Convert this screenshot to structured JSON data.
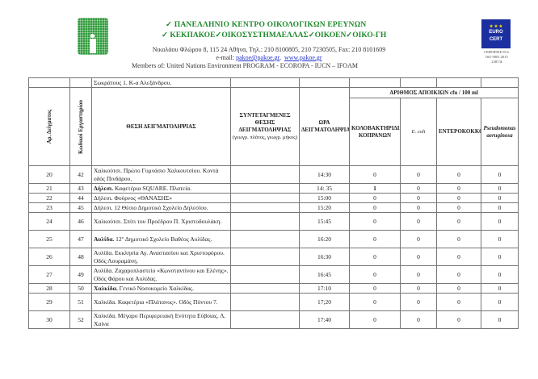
{
  "header": {
    "line1": "✓  ΠΑΝΕΛΛΗΝΙΟ ΚΕΝΤΡΟ ΟΙΚΟΛΟΓΙΚΩΝ ΕΡΕΥΝΩΝ",
    "line2": "✓ ΚΕΚΠΑΚΟΕ✓ΟΙΚΟΣΥΣΤΗΜΑΕΛΛΑΣ✓ΟΙΚΟΕΝ✓ΟΙΚΟ-ΓΗ",
    "address": "Νικολάου Φλώρου 8, 115 24 Αθήνα, Τηλ.: 210 8100805, 210 7230505, Fax: 210 8101609",
    "email_label": "e-mail:",
    "email": "pakoe@pakoe.gr",
    "website": "www.pakoe.gr",
    "members": "Members of:  United Nations Environment PROGRAM - ECOROPA - IUCN – IFOAM",
    "cert_logo": [
      "EURO",
      "CERT"
    ],
    "cert_text": [
      "CERTIFIED N.S.",
      "ISO 9001:2015",
      "2387/Δ"
    ],
    "brand_color": "#1f8a2c"
  },
  "table": {
    "prev_row_text": "Σωκράτους 1. Κ-α Αλεξάνδρου.",
    "headers": {
      "sample_no": "Αρ. Δείγματος",
      "lab_code": "Κωδικοί Εργαστηρίου",
      "location": "ΘΕΣΗ ΔΕΙΓΜΑΤΟΛΗΨΙΑΣ",
      "coords": "ΣΥΝΤΕΤΑΓΜΕΝΕΣ ΘΕΣΗΣ ΔΕΙΓΜΑΤΟΛΗΨΙΑΣ",
      "coords_note": "(γεωγρ. πλάτος, γεωγρ. μήκος)",
      "time": "ΩΡΑ ΔΕΙΓΜΑΤΟΛΗΨΙΑΣ",
      "colonies": "ΑΡΙΘΜΟΣ ΑΠΟΙΚΙΩΝ  cfu / 100 ml",
      "coliforms": "ΚΟΛΟΒΑΚΤΗΡΙΔΙΑ ΚΟΠΡΑΝΩΝ",
      "ecoli": "E. coli",
      "enterococci": "ΕΝΤΕΡΟΚΟΚΚΟΙ",
      "pseudomonas": "Pseudomonas aeruginosa"
    },
    "rows": [
      {
        "no": "20",
        "code": "42",
        "bold": "",
        "loc": "Χαλκούτσι.  Πρώτο Γυμνάσιο Χαλκουτσίου. Κοντά οδός Πινδάρου.",
        "time": "14:30",
        "v": [
          "0",
          "0",
          "0",
          "0"
        ],
        "h": "d"
      },
      {
        "no": "21",
        "code": "43",
        "bold": "Δήλεσι.",
        "loc": " Καφετέρια SQUARE. Πλατεία.",
        "time": "14: 35",
        "v": [
          "1",
          "0",
          "0",
          "0"
        ],
        "h": "s"
      },
      {
        "no": "22",
        "code": "44",
        "bold": "",
        "loc": "Δήλεσι.  Φούρνος «ΘΑΝΑΣΗΣ»",
        "time": "15:00",
        "v": [
          "0",
          "0",
          "0",
          "0"
        ],
        "h": "s"
      },
      {
        "no": "23",
        "code": "45",
        "bold": "",
        "loc": "Δήλεσι. 12 Θέσιο Δημοτικό Σχολείο Δηλεσίου.",
        "time": "15:20",
        "v": [
          "0",
          "0",
          "0",
          "0"
        ],
        "h": "s"
      },
      {
        "no": "24",
        "code": "46",
        "bold": "",
        "loc": "Χαλκούτσι. Σπίτι του Προέδρου Π. Χριστοδουλάκη.",
        "time": "15:45",
        "v": [
          "0",
          "0",
          "0",
          "0"
        ],
        "h": "d"
      },
      {
        "no": "25",
        "code": "47",
        "bold": "Αυλίδα.",
        "loc": " 12º Δημοτικό Σχολείο Βαθέος Αυλίδας.",
        "time": "16:20",
        "v": [
          "0",
          "0",
          "0",
          "0"
        ],
        "h": "d"
      },
      {
        "no": "26",
        "code": "48",
        "bold": "",
        "loc": "Αυλίδα. Εκκλησία Αγ. Αναστασίου και Χριστοφόρου. Οδός Λουραμάνη.",
        "time": "16:30",
        "v": [
          "0",
          "0",
          "0",
          "0"
        ],
        "h": "d"
      },
      {
        "no": "27",
        "code": "49",
        "bold": "",
        "loc": "Αυλίδα. Ζαχαροπλαστείο «Κωνσταντίνου και Ελένης». Οδός Φάρου και Αυλίδας.",
        "time": "16:45",
        "v": [
          "0",
          "0",
          "0",
          "0"
        ],
        "h": "d"
      },
      {
        "no": "28",
        "code": "50",
        "bold": "Χαλκίδα.",
        "loc": " Γενικό Νοσοκομείο  Χαλκίδας.",
        "time": "17:10",
        "v": [
          "0",
          "0",
          "0",
          "0"
        ],
        "h": "s"
      },
      {
        "no": "29",
        "code": "51",
        "bold": "",
        "loc": "Χαλκίδα. Καφετέρια «Πλάτανος». Οδός Πόντου 7.",
        "time": "17;20",
        "v": [
          "0",
          "0",
          "0",
          "0"
        ],
        "h": "d"
      },
      {
        "no": "30",
        "code": "52",
        "bold": "",
        "loc": "Χαλκίδα. Μέγαρο Περιφερειακή Ενότητα Εύβοιας. Λ. Χαίνα",
        "time": "17:40",
        "v": [
          "0",
          "0",
          "0",
          "0"
        ],
        "h": "d"
      }
    ]
  }
}
